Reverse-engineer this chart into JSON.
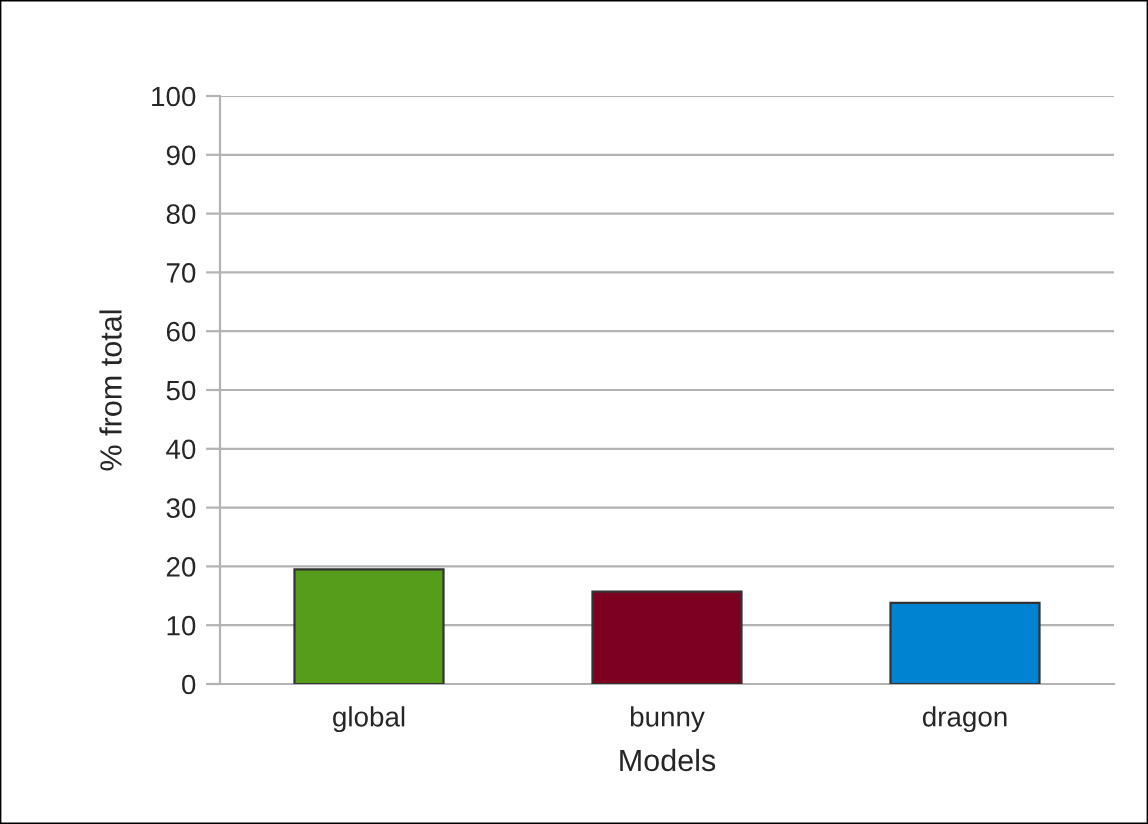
{
  "chart_data": {
    "type": "bar",
    "xlabel": "Models",
    "ylabel": "% from total",
    "categories": [
      "global",
      "bunny",
      "dragon"
    ],
    "values": [
      19.5,
      15.7,
      13.8
    ],
    "colors": [
      "#579d1c",
      "#7e0021",
      "#0084d1"
    ],
    "ylim": [
      0,
      100
    ],
    "yticks": [
      0,
      10,
      20,
      30,
      40,
      50,
      60,
      70,
      80,
      90,
      100
    ],
    "grid": "y",
    "legend": false
  }
}
